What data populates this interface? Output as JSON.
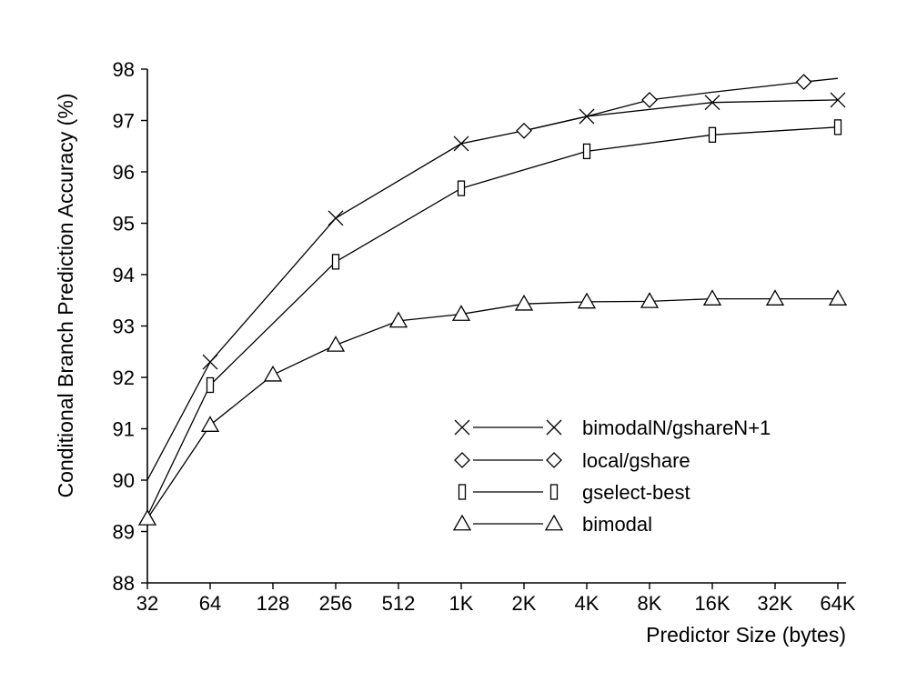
{
  "chart_data": {
    "type": "line",
    "xlabel": "Predictor Size (bytes)",
    "ylabel": "Conditional Branch Prediction Accuracy (%)",
    "x_ticks": [
      "32",
      "64",
      "128",
      "256",
      "512",
      "1K",
      "2K",
      "4K",
      "8K",
      "16K",
      "32K",
      "64K"
    ],
    "x_scale": "log2",
    "y_ticks": [
      "88",
      "89",
      "90",
      "91",
      "92",
      "93",
      "94",
      "95",
      "96",
      "97",
      "98"
    ],
    "ylim": [
      88,
      98
    ],
    "grid": false,
    "legend_position": "bottom-right",
    "series": [
      {
        "name": "bimodalN/gshareN+1",
        "marker": "x",
        "line_points": [
          [
            32,
            90.0
          ],
          [
            64,
            92.3
          ],
          [
            256,
            95.1
          ],
          [
            1024,
            96.55
          ],
          [
            2048,
            96.8
          ],
          [
            4096,
            97.08
          ],
          [
            16384,
            97.35
          ],
          [
            65536,
            97.4
          ]
        ],
        "marker_points": [
          [
            64,
            92.3
          ],
          [
            256,
            95.1
          ],
          [
            1024,
            96.55
          ],
          [
            4096,
            97.08
          ],
          [
            16384,
            97.35
          ],
          [
            65536,
            97.4
          ]
        ]
      },
      {
        "name": "local/gshare",
        "marker": "diamond",
        "line_points": [
          [
            2048,
            96.8
          ],
          [
            4096,
            97.08
          ],
          [
            8192,
            97.4
          ],
          [
            16384,
            97.55
          ],
          [
            45000,
            97.75
          ],
          [
            65536,
            97.82
          ]
        ],
        "marker_points": [
          [
            2048,
            96.8
          ],
          [
            8192,
            97.4
          ],
          [
            45000,
            97.75
          ]
        ]
      },
      {
        "name": "gselect-best",
        "marker": "rect",
        "line_points": [
          [
            32,
            89.3
          ],
          [
            64,
            91.85
          ],
          [
            256,
            94.25
          ],
          [
            1024,
            95.68
          ],
          [
            4096,
            96.4
          ],
          [
            16384,
            96.72
          ],
          [
            65536,
            96.87
          ]
        ],
        "marker_points": [
          [
            64,
            91.85
          ],
          [
            256,
            94.25
          ],
          [
            1024,
            95.68
          ],
          [
            4096,
            96.4
          ],
          [
            16384,
            96.72
          ],
          [
            65536,
            96.87
          ]
        ]
      },
      {
        "name": "bimodal",
        "marker": "triangle",
        "line_points": [
          [
            32,
            89.25
          ],
          [
            64,
            91.07
          ],
          [
            128,
            92.05
          ],
          [
            256,
            92.63
          ],
          [
            512,
            93.1
          ],
          [
            1024,
            93.23
          ],
          [
            2048,
            93.43
          ],
          [
            4096,
            93.47
          ],
          [
            8192,
            93.48
          ],
          [
            16384,
            93.53
          ],
          [
            32768,
            93.53
          ],
          [
            65536,
            93.53
          ]
        ],
        "marker_points": [
          [
            32,
            89.25
          ],
          [
            64,
            91.07
          ],
          [
            128,
            92.05
          ],
          [
            256,
            92.63
          ],
          [
            512,
            93.1
          ],
          [
            1024,
            93.23
          ],
          [
            2048,
            93.43
          ],
          [
            4096,
            93.47
          ],
          [
            8192,
            93.48
          ],
          [
            16384,
            93.53
          ],
          [
            32768,
            93.53
          ],
          [
            65536,
            93.53
          ]
        ]
      }
    ]
  }
}
